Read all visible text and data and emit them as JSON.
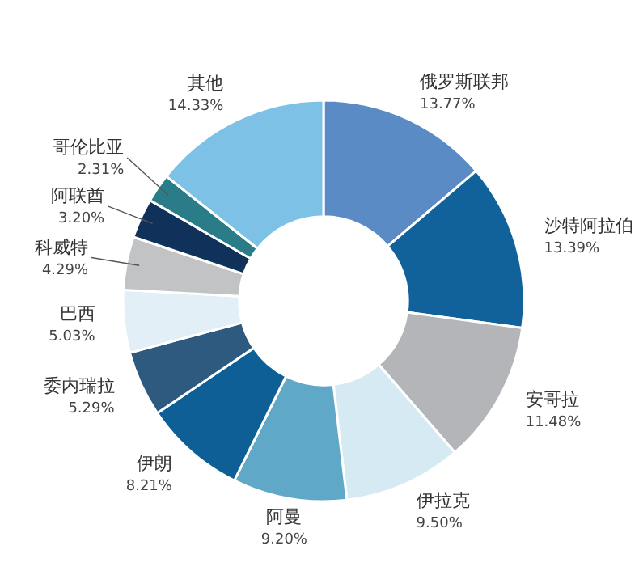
{
  "chart_data": {
    "type": "donut",
    "categories": [
      "俄罗斯联邦",
      "沙特阿拉伯",
      "安哥拉",
      "伊拉克",
      "阿曼",
      "伊朗",
      "委内瑞拉",
      "巴西",
      "科威特",
      "阿联酋",
      "哥伦比亚",
      "其他"
    ],
    "values": [
      13.77,
      13.39,
      11.48,
      9.5,
      9.2,
      8.21,
      5.29,
      5.03,
      4.29,
      3.2,
      2.31,
      14.33
    ],
    "colors": [
      "#5b8bc4",
      "#11629a",
      "#b3b5b8",
      "#d6eaf3",
      "#5fa8c8",
      "#0d5f95",
      "#2f5a80",
      "#e2eff6",
      "#c2c3c5",
      "#10315a",
      "#2a7c88",
      "#7dc1e6"
    ],
    "value_labels": [
      "13.77%",
      "13.39%",
      "11.48%",
      "9.50%",
      "9.20%",
      "8.21%",
      "5.29%",
      "5.03%",
      "4.29%",
      "3.20%",
      "2.31%",
      "14.33%"
    ]
  }
}
